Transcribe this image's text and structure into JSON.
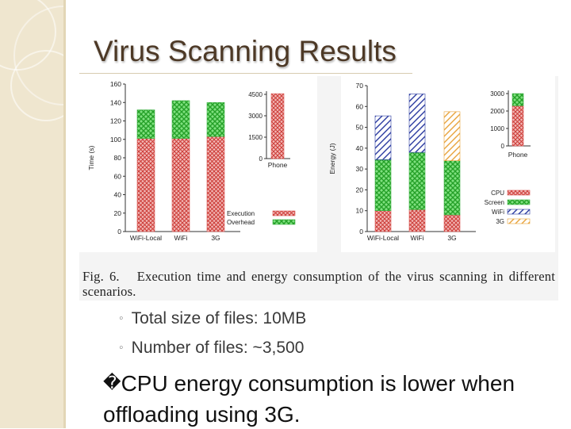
{
  "slide": {
    "title": "Virus Scanning Results",
    "figure_caption_label": "Fig. 6.",
    "figure_caption": "Execution time and energy consumption of the virus scanning in different scenarios.",
    "sub_bullets": [
      "Total size of files: 10MB",
      "Number of files: ~3,500"
    ],
    "sub_marker": "◦",
    "main_bullet_marker": "�",
    "main_bullet": "CPU energy consumption is lower when offloading using 3G."
  },
  "colors": {
    "sidebar": "#efe6cf",
    "title": "#4d3926",
    "red": "#d9534f",
    "green": "#3cb043",
    "blue": "#2a3aa0",
    "orange": "#e8a33c"
  },
  "chart_data": [
    {
      "type": "bar",
      "stacked": true,
      "ylabel": "Time (s)",
      "ylim": [
        0,
        160
      ],
      "yticks": [
        0,
        20,
        40,
        60,
        80,
        100,
        120,
        140,
        160
      ],
      "categories": [
        "WiFi-Local",
        "WiFi",
        "3G"
      ],
      "series": [
        {
          "name": "Execution",
          "color": "#d9534f",
          "pattern": "hatch-red",
          "values": [
            101,
            101,
            103
          ]
        },
        {
          "name": "Overhead",
          "color": "#3cb043",
          "pattern": "hatch-green",
          "values": [
            31,
            41,
            37
          ]
        }
      ],
      "legend": "bottom-right",
      "inset": {
        "categories": [
          "Phone"
        ],
        "ylim": [
          0,
          4500
        ],
        "yticks": [
          0,
          1500,
          3000,
          4500
        ],
        "series": [
          {
            "name": "Execution",
            "values": [
              4550
            ]
          }
        ]
      }
    },
    {
      "type": "bar",
      "stacked": true,
      "ylabel": "Energy (J)",
      "ylim": [
        0,
        70
      ],
      "yticks": [
        0,
        10,
        20,
        30,
        40,
        50,
        60,
        70
      ],
      "categories": [
        "WiFi-Local",
        "WiFi",
        "3G"
      ],
      "series": [
        {
          "name": "CPU",
          "color": "#d9534f",
          "pattern": "hatch-red",
          "values": [
            10,
            10.5,
            8
          ]
        },
        {
          "name": "Screen",
          "color": "#3cb043",
          "pattern": "hatch-green",
          "values": [
            24.5,
            27.5,
            26
          ]
        },
        {
          "name": "WiFi",
          "color": "#2a3aa0",
          "pattern": "diag-blue",
          "values": [
            21,
            28,
            0
          ]
        },
        {
          "name": "3G",
          "color": "#e8a33c",
          "pattern": "diag-orange",
          "values": [
            0,
            0,
            23.5
          ]
        }
      ],
      "legend": "bottom-right",
      "inset": {
        "categories": [
          "Phone"
        ],
        "ylim": [
          0,
          3000
        ],
        "yticks": [
          0,
          1000,
          2000,
          3000
        ],
        "series": [
          {
            "name": "CPU",
            "values": [
              2300
            ]
          },
          {
            "name": "Screen",
            "values": [
              700
            ]
          }
        ]
      }
    }
  ]
}
